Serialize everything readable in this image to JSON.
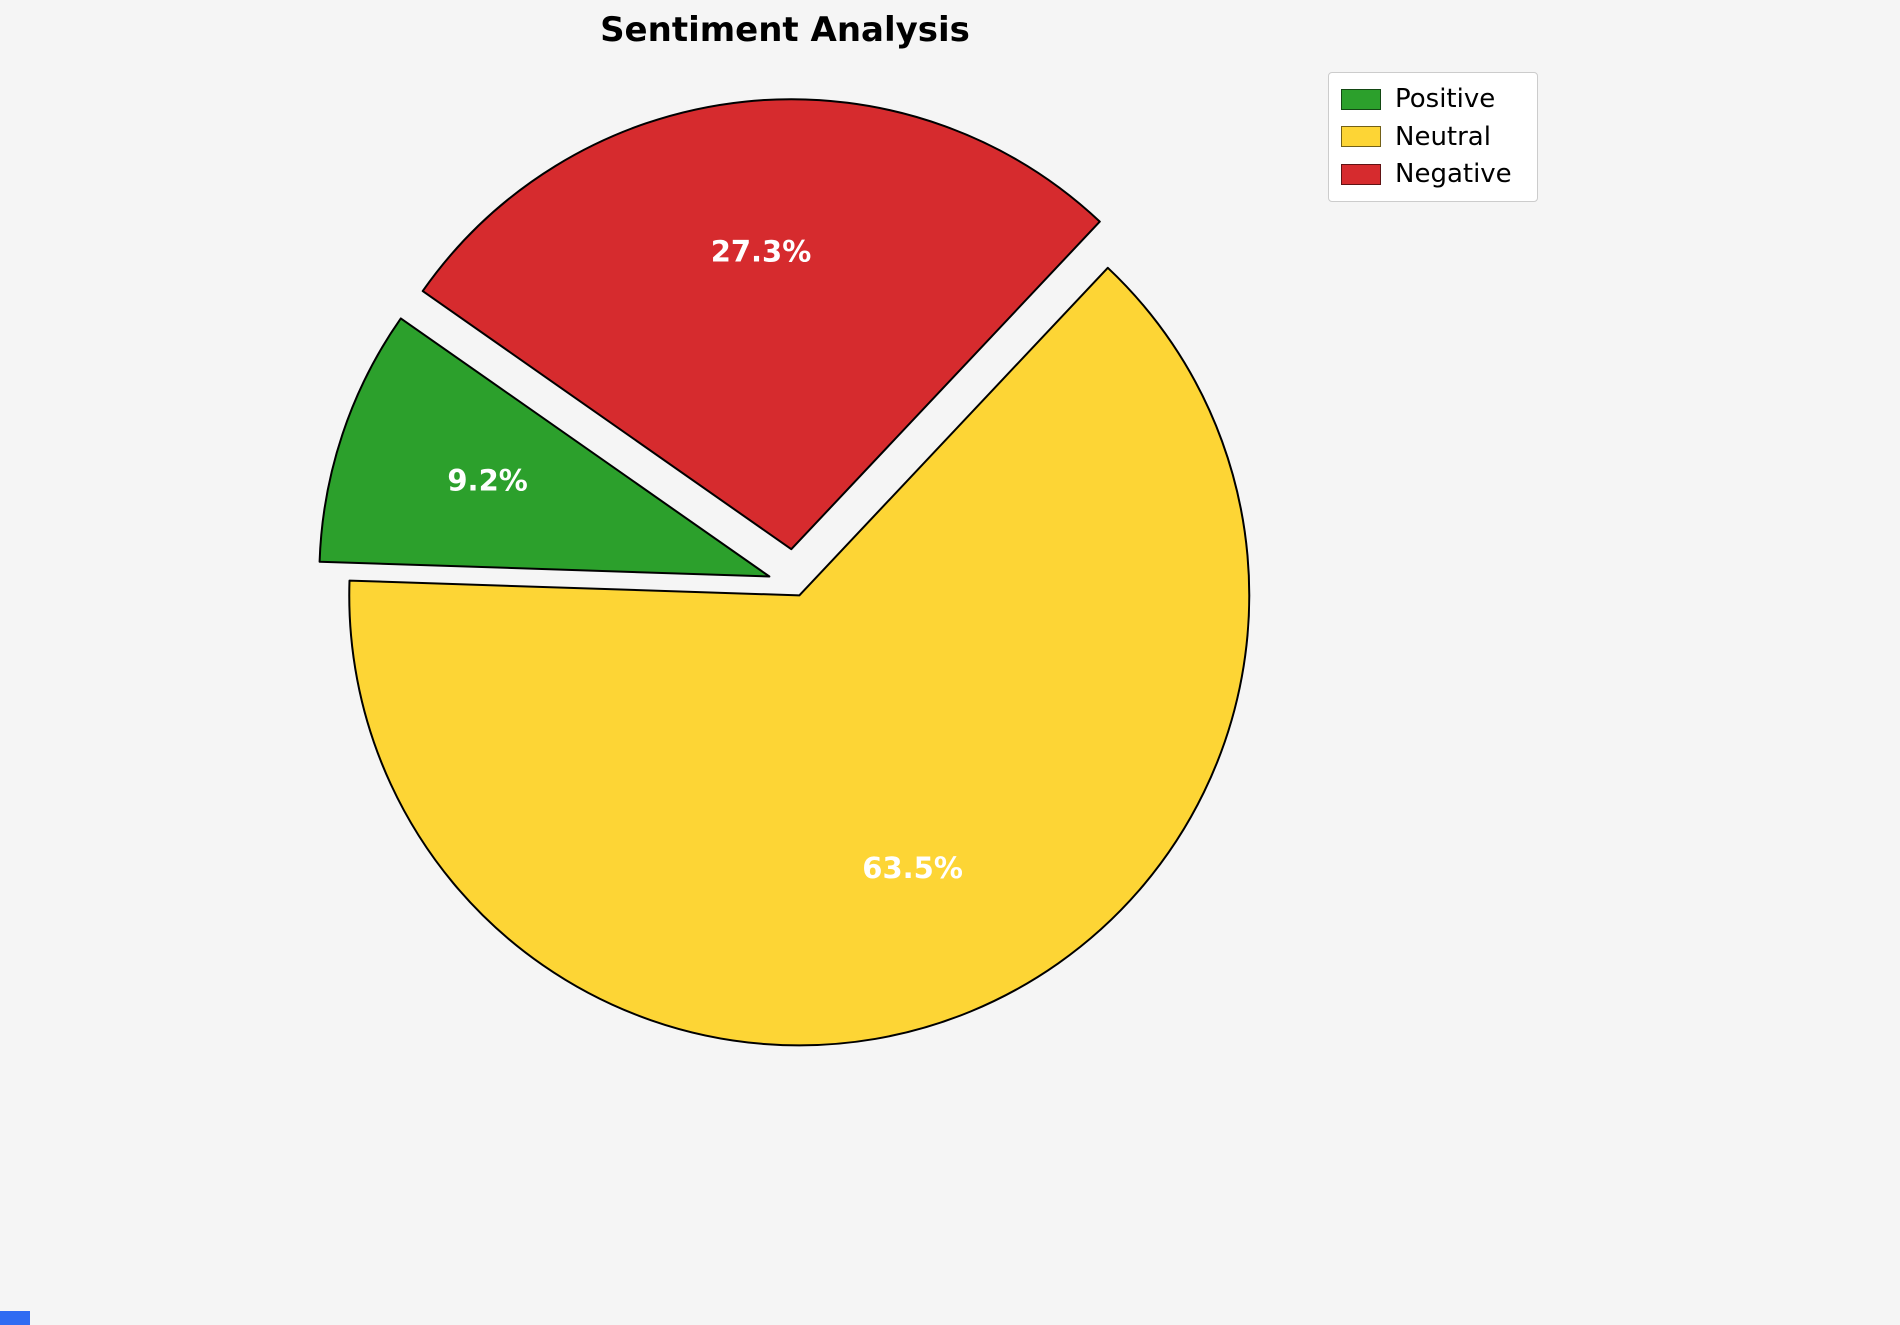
{
  "chart_data": {
    "type": "pie",
    "title": "Sentiment Analysis",
    "categories": [
      "Positive",
      "Neutral",
      "Negative"
    ],
    "values": [
      9.2,
      63.5,
      27.3
    ],
    "percent_labels": [
      "9.2%",
      "63.5%",
      "27.3%"
    ],
    "colors": [
      "#2ca02c",
      "#fdd535",
      "#d62b2e"
    ],
    "explode": [
      0.06,
      0.025,
      0.08
    ],
    "startangle": 145,
    "counterclock": true,
    "edge_color": "#000000",
    "label_color": "#ffffff",
    "background_color": "#f5f5f5",
    "legend": {
      "position": "upper right",
      "entries": [
        {
          "label": "Positive",
          "color": "#2ca02c"
        },
        {
          "label": "Neutral",
          "color": "#fdd535"
        },
        {
          "label": "Negative",
          "color": "#d62b2e"
        }
      ]
    },
    "corner_fragment_color": "#2f6bf2"
  }
}
